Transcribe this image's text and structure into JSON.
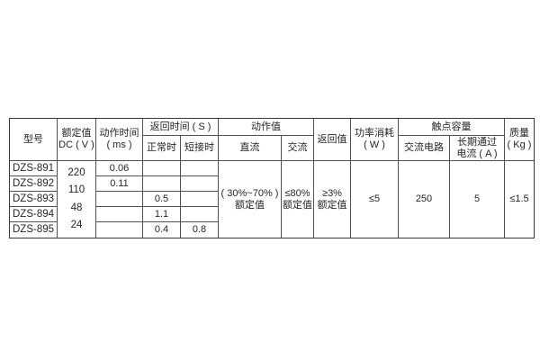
{
  "table": {
    "headers": {
      "model": "型号",
      "rated_line1": "额定值",
      "rated_line2": "DC ( V )",
      "optime_line1": "动作时间",
      "optime_line2": "( ms )",
      "return_time_group": "返回时间 ( S )",
      "return_normal": "正常时",
      "return_short": "短接时",
      "operate_group": "动作值",
      "operate_dc": "直流",
      "operate_ac": "交流",
      "return_value": "返回值",
      "power_line1": "功率消耗",
      "power_line2": "( W )",
      "contact_group": "触点容量",
      "contact_ac": "交流电路",
      "contact_cur_line1": "长期通过",
      "contact_cur_line2": "电流 ( A )",
      "mass_line1": "质量",
      "mass_line2": "( Kg )"
    },
    "data": {
      "models": [
        "DZS-891",
        "DZS-892",
        "DZS-893",
        "DZS-894",
        "DZS-895"
      ],
      "voltages": [
        "220",
        "110",
        "48",
        "24"
      ],
      "optime": [
        "0.06",
        "0.11",
        "",
        "",
        ""
      ],
      "rnormal": [
        "",
        "",
        "0.5",
        "1.1",
        "0.4"
      ],
      "rshort": [
        "",
        "",
        "",
        "",
        "0.8"
      ],
      "dc_line1": "( 30%~70% )",
      "dc_line2": "额定值",
      "ac_line1": "≤80%",
      "ac_line2": "额定值",
      "rv_line1": "≥3%",
      "rv_line2": "额定值",
      "power": "≤5",
      "contact_ac_value": "250",
      "contact_cur_value": "5",
      "mass_value": "≤1.5"
    },
    "colors": {
      "border": "#525252",
      "outer_border": "#3a3a3a",
      "text": "#262626",
      "background": "#ffffff"
    }
  }
}
